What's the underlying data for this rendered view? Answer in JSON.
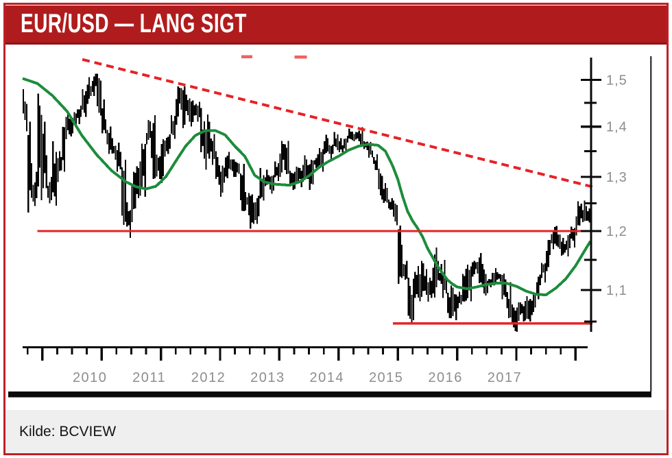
{
  "header": {
    "title": "EUR/USD — LANG SIGT",
    "bg_color": "#b01c1d"
  },
  "footer": {
    "source_label": "Kilde: BCVIEW",
    "bg_color": "#efeff0"
  },
  "colors": {
    "chart_red": "#e62327",
    "faded_red": "#f26060",
    "ma_green": "#1d8c3c",
    "bars_black": "#050505",
    "axis_black": "#0a0a0a",
    "label_gray": "#8d8d8d",
    "window_border_gray": "#3f3f3f",
    "frame_red": "#bf2026",
    "header_divider": "#8d1417"
  },
  "chart_data": {
    "type": "bar",
    "subtype": "high-low-price-bars",
    "title": "EUR/USD — LANG SIGT",
    "pair": "EUR/USD",
    "interval": "monthly",
    "start_month": "2008-09",
    "first_open": 1.46,
    "scale": "log",
    "y_axis": {
      "side": "right",
      "major_ticks": [
        1.5,
        1.4,
        1.3,
        1.2,
        1.1
      ],
      "major_tick_labels": [
        "1,5",
        "1,4",
        "1,3",
        "1,2",
        "1,1"
      ],
      "minor_ticks": [
        1.45,
        1.35,
        1.25,
        1.15,
        1.05
      ],
      "range": [
        1.03,
        1.56
      ]
    },
    "x_axis": {
      "year_labels": [
        "2010",
        "2011",
        "2012",
        "2013",
        "2014",
        "2015",
        "2016",
        "2017"
      ],
      "tick_years": [
        2009,
        2010,
        2011,
        2012,
        2013,
        2014,
        2015,
        2016,
        2017,
        2018
      ],
      "minor_tick_unit": "quarter"
    },
    "series_hlc_monthly": [
      [
        1.48,
        1.39,
        1.41
      ],
      [
        1.41,
        1.233,
        1.273
      ],
      [
        1.31,
        1.245,
        1.27
      ],
      [
        1.47,
        1.256,
        1.4
      ],
      [
        1.41,
        1.278,
        1.28
      ],
      [
        1.3,
        1.25,
        1.266
      ],
      [
        1.37,
        1.246,
        1.325
      ],
      [
        1.35,
        1.29,
        1.324
      ],
      [
        1.42,
        1.31,
        1.415
      ],
      [
        1.43,
        1.38,
        1.403
      ],
      [
        1.43,
        1.386,
        1.425
      ],
      [
        1.444,
        1.405,
        1.433
      ],
      [
        1.48,
        1.42,
        1.464
      ],
      [
        1.506,
        1.448,
        1.472
      ],
      [
        1.514,
        1.465,
        1.5
      ],
      [
        1.514,
        1.423,
        1.433
      ],
      [
        1.457,
        1.386,
        1.386
      ],
      [
        1.4,
        1.345,
        1.357
      ],
      [
        1.376,
        1.333,
        1.351
      ],
      [
        1.367,
        1.31,
        1.33
      ],
      [
        1.333,
        1.211,
        1.23
      ],
      [
        1.252,
        1.188,
        1.224
      ],
      [
        1.31,
        1.216,
        1.305
      ],
      [
        1.33,
        1.26,
        1.268
      ],
      [
        1.365,
        1.262,
        1.363
      ],
      [
        1.414,
        1.364,
        1.395
      ],
      [
        1.424,
        1.296,
        1.298
      ],
      [
        1.343,
        1.296,
        1.338
      ],
      [
        1.374,
        1.288,
        1.369
      ],
      [
        1.384,
        1.345,
        1.381
      ],
      [
        1.424,
        1.375,
        1.416
      ],
      [
        1.486,
        1.404,
        1.48
      ],
      [
        1.486,
        1.397,
        1.44
      ],
      [
        1.468,
        1.41,
        1.45
      ],
      [
        1.455,
        1.4,
        1.44
      ],
      [
        1.452,
        1.41,
        1.437
      ],
      [
        1.439,
        1.335,
        1.34
      ],
      [
        1.425,
        1.314,
        1.385
      ],
      [
        1.385,
        1.323,
        1.345
      ],
      [
        1.35,
        1.285,
        1.296
      ],
      [
        1.322,
        1.262,
        1.308
      ],
      [
        1.349,
        1.297,
        1.333
      ],
      [
        1.334,
        1.3,
        1.334
      ],
      [
        1.327,
        1.3,
        1.324
      ],
      [
        1.325,
        1.236,
        1.236
      ],
      [
        1.271,
        1.228,
        1.267
      ],
      [
        1.267,
        1.204,
        1.23
      ],
      [
        1.264,
        1.213,
        1.257
      ],
      [
        1.317,
        1.255,
        1.286
      ],
      [
        1.314,
        1.282,
        1.296
      ],
      [
        1.303,
        1.268,
        1.299
      ],
      [
        1.33,
        1.292,
        1.32
      ],
      [
        1.371,
        1.3,
        1.358
      ],
      [
        1.371,
        1.305,
        1.306
      ],
      [
        1.312,
        1.275,
        1.282
      ],
      [
        1.32,
        1.277,
        1.317
      ],
      [
        1.323,
        1.28,
        1.3
      ],
      [
        1.342,
        1.296,
        1.301
      ],
      [
        1.333,
        1.275,
        1.33
      ],
      [
        1.344,
        1.317,
        1.322
      ],
      [
        1.356,
        1.31,
        1.353
      ],
      [
        1.383,
        1.344,
        1.358
      ],
      [
        1.363,
        1.335,
        1.359
      ],
      [
        1.389,
        1.352,
        1.375
      ],
      [
        1.376,
        1.348,
        1.349
      ],
      [
        1.381,
        1.347,
        1.38
      ],
      [
        1.396,
        1.372,
        1.377
      ],
      [
        1.389,
        1.37,
        1.387
      ],
      [
        1.399,
        1.359,
        1.363
      ],
      [
        1.37,
        1.352,
        1.369
      ],
      [
        1.369,
        1.337,
        1.339
      ],
      [
        1.344,
        1.313,
        1.313
      ],
      [
        1.316,
        1.257,
        1.263
      ],
      [
        1.288,
        1.251,
        1.253
      ],
      [
        1.26,
        1.238,
        1.245
      ],
      [
        1.255,
        1.21,
        1.21
      ],
      [
        1.21,
        1.11,
        1.129
      ],
      [
        1.148,
        1.117,
        1.12
      ],
      [
        1.12,
        1.046,
        1.073
      ],
      [
        1.13,
        1.052,
        1.122
      ],
      [
        1.148,
        1.082,
        1.099
      ],
      [
        1.144,
        1.092,
        1.115
      ],
      [
        1.12,
        1.081,
        1.098
      ],
      [
        1.171,
        1.088,
        1.121
      ],
      [
        1.148,
        1.11,
        1.118
      ],
      [
        1.15,
        1.087,
        1.1
      ],
      [
        1.107,
        1.055,
        1.056
      ],
      [
        1.104,
        1.052,
        1.086
      ],
      [
        1.097,
        1.071,
        1.083
      ],
      [
        1.135,
        1.081,
        1.087
      ],
      [
        1.142,
        1.082,
        1.138
      ],
      [
        1.148,
        1.122,
        1.145
      ],
      [
        1.162,
        1.111,
        1.113
      ],
      [
        1.143,
        1.091,
        1.111
      ],
      [
        1.118,
        1.095,
        1.117
      ],
      [
        1.136,
        1.107,
        1.116
      ],
      [
        1.129,
        1.114,
        1.124
      ],
      [
        1.127,
        1.085,
        1.098
      ],
      [
        1.113,
        1.055,
        1.059
      ],
      [
        1.077,
        1.035,
        1.052
      ],
      [
        1.08,
        1.034,
        1.08
      ],
      [
        1.082,
        1.05,
        1.058
      ],
      [
        1.09,
        1.05,
        1.065
      ],
      [
        1.095,
        1.06,
        1.09
      ],
      [
        1.125,
        1.085,
        1.124
      ],
      [
        1.145,
        1.112,
        1.143
      ],
      [
        1.184,
        1.131,
        1.184
      ],
      [
        1.207,
        1.168,
        1.191
      ],
      [
        1.209,
        1.169,
        1.181
      ],
      [
        1.188,
        1.157,
        1.165
      ],
      [
        1.195,
        1.156,
        1.19
      ],
      [
        1.208,
        1.171,
        1.201
      ],
      [
        1.254,
        1.192,
        1.241
      ],
      [
        1.255,
        1.216,
        1.219
      ],
      [
        1.245,
        1.215,
        1.232
      ]
    ],
    "moving_average": {
      "name": "long-moving-average",
      "points_month_price": [
        [
          0,
          1.503
        ],
        [
          3,
          1.492
        ],
        [
          6,
          1.466
        ],
        [
          9,
          1.432
        ],
        [
          12,
          1.382
        ],
        [
          15,
          1.343
        ],
        [
          18,
          1.312
        ],
        [
          21,
          1.29
        ],
        [
          23,
          1.281
        ],
        [
          25,
          1.277
        ],
        [
          27,
          1.282
        ],
        [
          29,
          1.3
        ],
        [
          31,
          1.33
        ],
        [
          33,
          1.36
        ],
        [
          35,
          1.382
        ],
        [
          37,
          1.392
        ],
        [
          39,
          1.392
        ],
        [
          41,
          1.383
        ],
        [
          43,
          1.36
        ],
        [
          45,
          1.34
        ],
        [
          47,
          1.303
        ],
        [
          49,
          1.29
        ],
        [
          51,
          1.286
        ],
        [
          54,
          1.284
        ],
        [
          56,
          1.29
        ],
        [
          58,
          1.302
        ],
        [
          60,
          1.318
        ],
        [
          62,
          1.33
        ],
        [
          64,
          1.34
        ],
        [
          66,
          1.352
        ],
        [
          68,
          1.36
        ],
        [
          70,
          1.364
        ],
        [
          72,
          1.362
        ],
        [
          73.5,
          1.35
        ],
        [
          75,
          1.32
        ],
        [
          76,
          1.295
        ],
        [
          77,
          1.262
        ],
        [
          78,
          1.235
        ],
        [
          79,
          1.218
        ],
        [
          80,
          1.205
        ],
        [
          81,
          1.19
        ],
        [
          82,
          1.17
        ],
        [
          83,
          1.155
        ],
        [
          84,
          1.14
        ],
        [
          85,
          1.128
        ],
        [
          86,
          1.117
        ],
        [
          87,
          1.11
        ],
        [
          88,
          1.105
        ],
        [
          90,
          1.102
        ],
        [
          92,
          1.105
        ],
        [
          94,
          1.109
        ],
        [
          96,
          1.111
        ],
        [
          98,
          1.111
        ],
        [
          100,
          1.106
        ],
        [
          102,
          1.098
        ],
        [
          104,
          1.093
        ],
        [
          106,
          1.092
        ],
        [
          108,
          1.103
        ],
        [
          110,
          1.118
        ],
        [
          112,
          1.14
        ],
        [
          114,
          1.168
        ],
        [
          115,
          1.182
        ]
      ]
    },
    "overlays": {
      "trend_resistance": {
        "style": "dashed",
        "from": {
          "month_index": 12.1,
          "price": 1.546
        },
        "to": {
          "month_index": 115.4,
          "price": 1.281
        }
      },
      "support_upper": {
        "price": 1.2,
        "from_month_index": 3.0
      },
      "support_lower": {
        "price": 1.047,
        "from_month_index": 75.0
      },
      "stray_dashes": [
        {
          "from_month_index": 44.3,
          "to_month_index": 46.5,
          "price": 1.552
        },
        {
          "from_month_index": 55.1,
          "to_month_index": 57.6,
          "price": 1.551
        }
      ]
    }
  }
}
